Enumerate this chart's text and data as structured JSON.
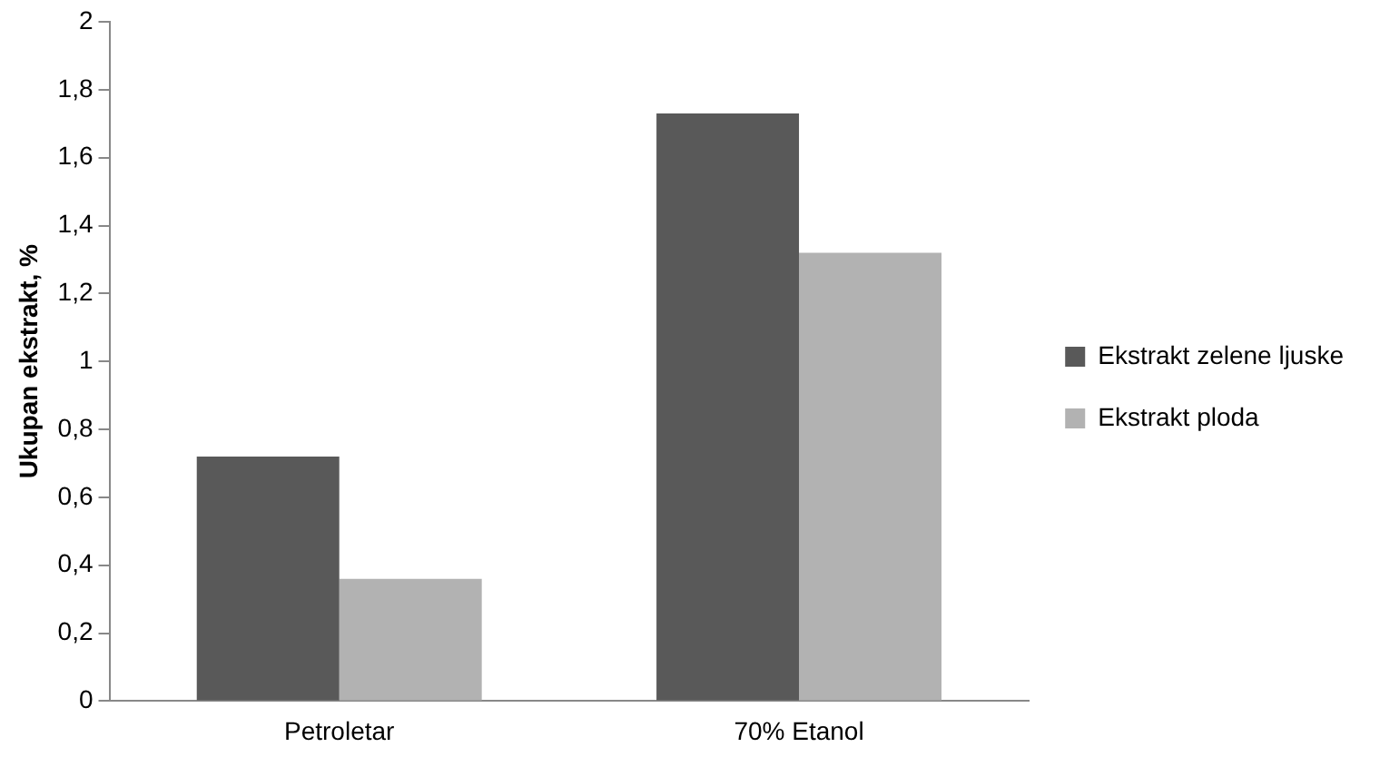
{
  "chart_data": {
    "type": "bar",
    "ylabel": "Ukupan ekstrakt, %",
    "categories": [
      "Petroletar",
      "70% Etanol"
    ],
    "series": [
      {
        "name": "Ekstrakt zelene ljuske",
        "color": "#595959",
        "values": [
          0.72,
          1.73
        ]
      },
      {
        "name": "Ekstrakt ploda",
        "color": "#b2b2b2",
        "values": [
          0.36,
          1.32
        ]
      }
    ],
    "ylim": [
      0,
      2
    ],
    "yticks": [
      0,
      {
        "value": 0.2,
        "label": "0,2"
      },
      {
        "value": 0.4,
        "label": "0,4"
      },
      {
        "value": 0.6,
        "label": "0,6"
      },
      {
        "value": 0.8,
        "label": "0,8"
      },
      1,
      {
        "value": 1.2,
        "label": "1,2"
      },
      {
        "value": 1.4,
        "label": "1,4"
      },
      {
        "value": 1.6,
        "label": "1,6"
      },
      {
        "value": 1.8,
        "label": "1,8"
      },
      2
    ],
    "grid": false,
    "legend": "right"
  }
}
